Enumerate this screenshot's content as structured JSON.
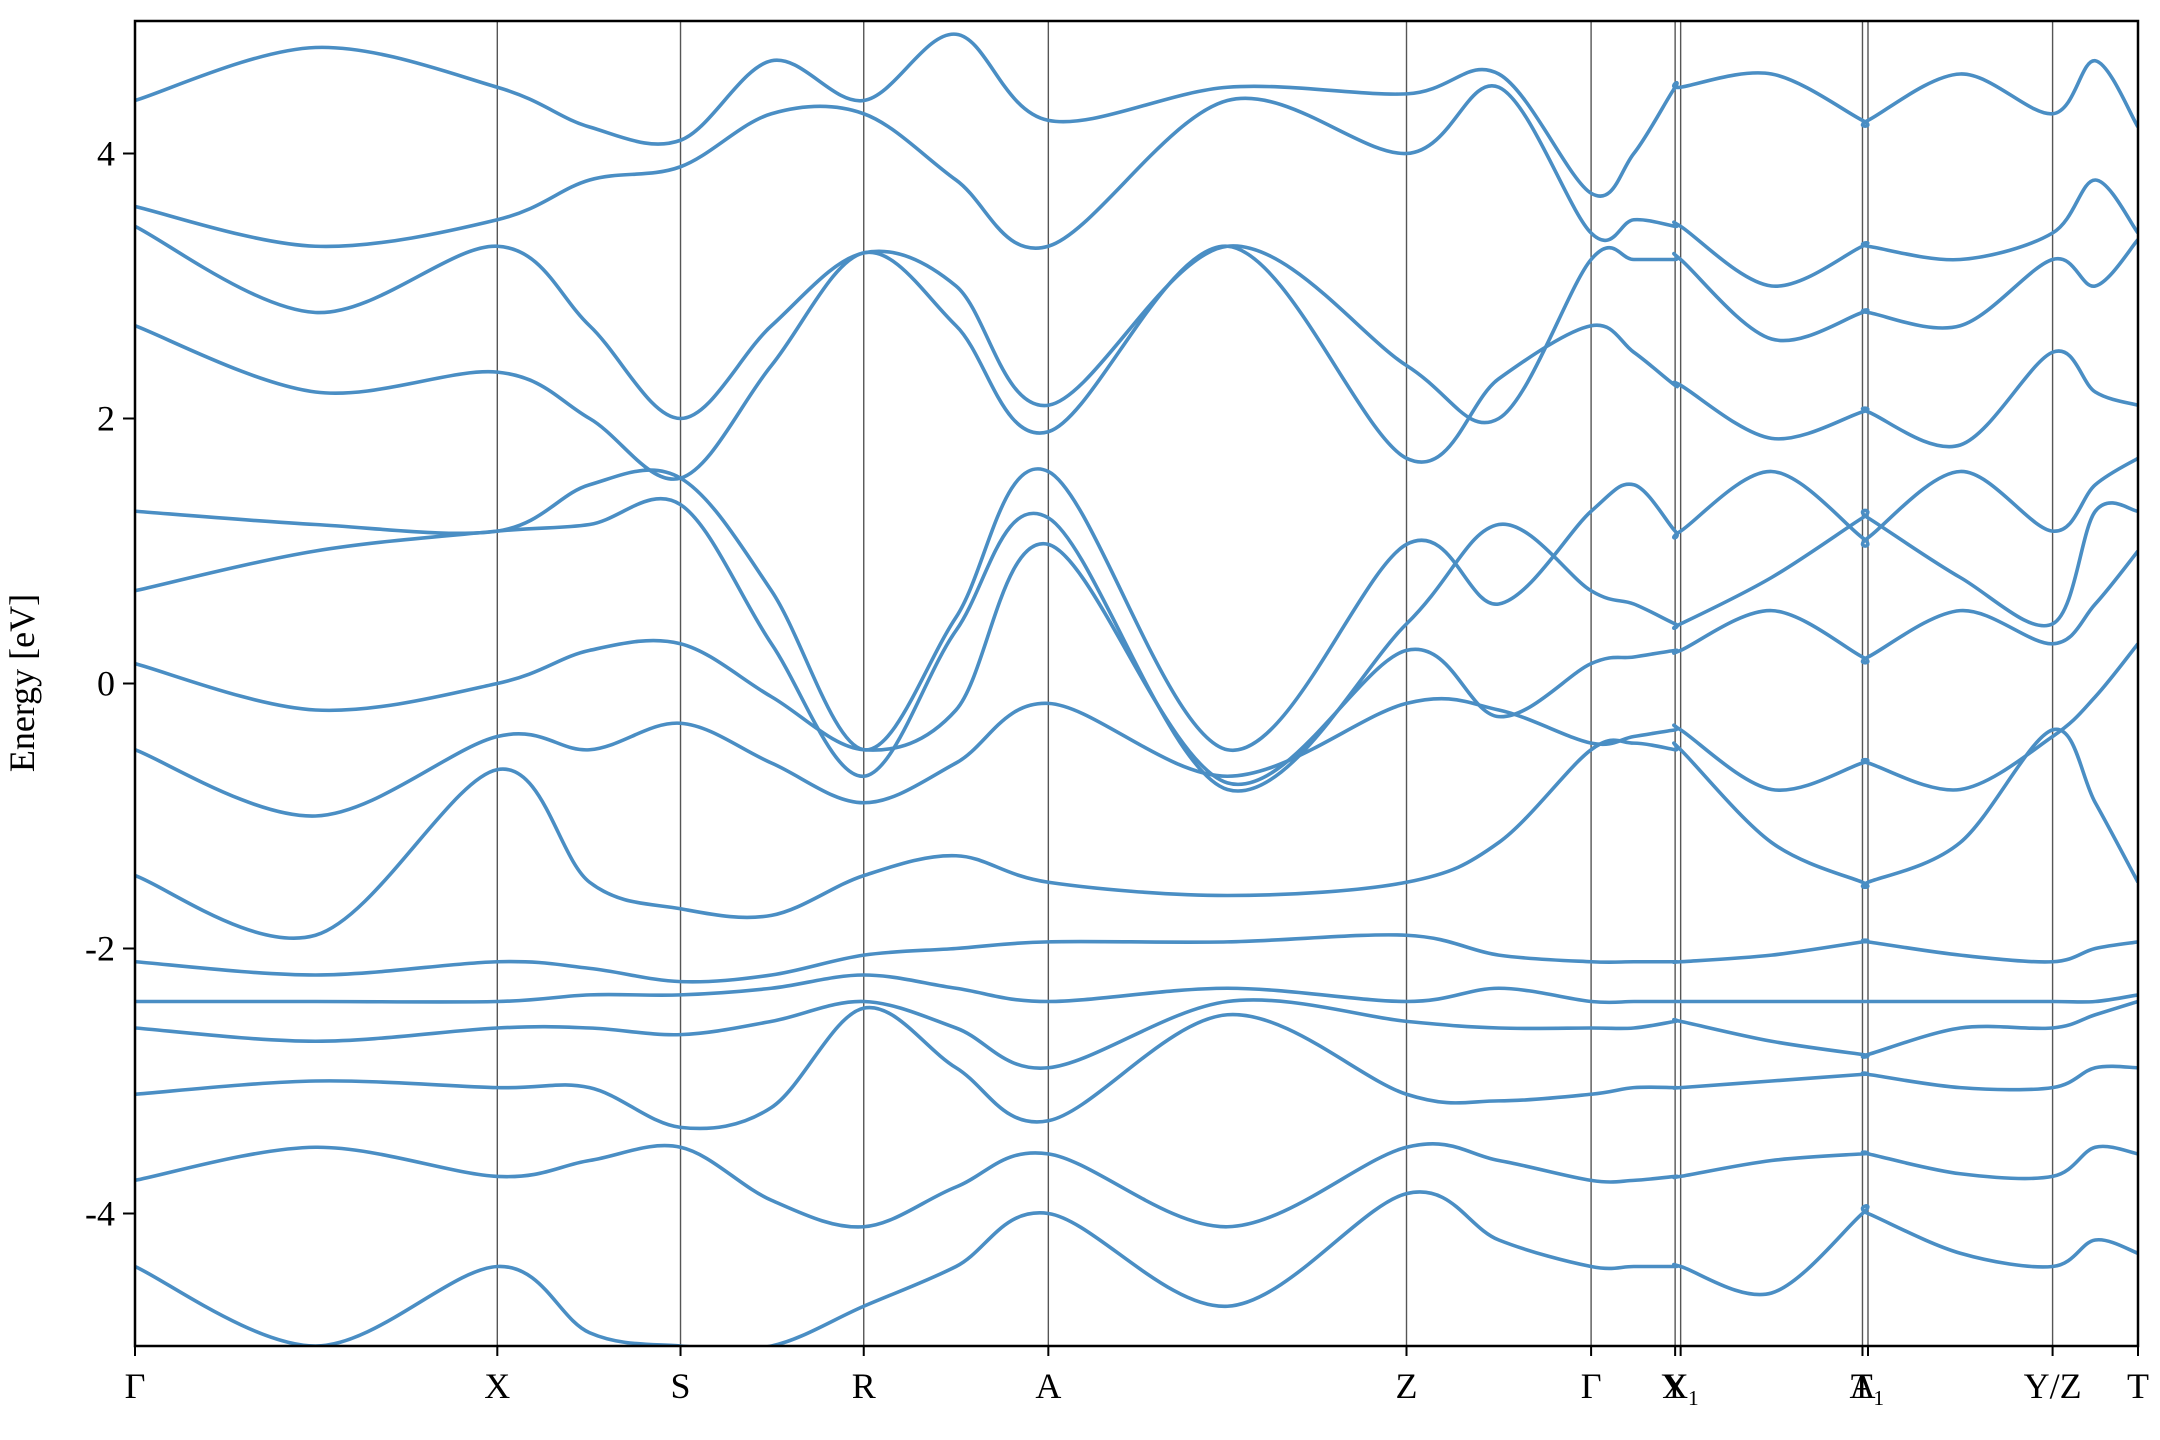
{
  "chart_data": {
    "type": "line",
    "ylabel": "Energy [eV]",
    "ylim": [
      -5,
      5
    ],
    "yticks": [
      -4,
      -2,
      0,
      2,
      4
    ],
    "xlim": [
      0,
      1454
    ],
    "xticks": [
      {
        "value": 0,
        "label": "Γ"
      },
      {
        "value": 263,
        "label": "X"
      },
      {
        "value": 396,
        "label": "S"
      },
      {
        "value": 529,
        "label": "R"
      },
      {
        "value": 663,
        "label": "A"
      },
      {
        "value": 923,
        "label": "Z"
      },
      {
        "value": 1057,
        "label": "Γ"
      },
      {
        "value": 1118,
        "label": "X"
      },
      {
        "value": 1122,
        "label": "Y₁"
      },
      {
        "value": 1254,
        "label": "A"
      },
      {
        "value": 1258,
        "label": "T₁"
      },
      {
        "value": 1392,
        "label": "Y/Z"
      },
      {
        "value": 1454,
        "label": "T"
      }
    ],
    "color": "#4a8ec4",
    "x": [
      0,
      131,
      263,
      330,
      396,
      462,
      529,
      596,
      663,
      793,
      923,
      990,
      1057,
      1088,
      1118,
      1122,
      1188,
      1254,
      1258,
      1325,
      1392,
      1423,
      1454
    ],
    "series": [
      {
        "values": [
          -4.4,
          -5,
          -4.4,
          -4.9,
          -5,
          -5,
          -4.7,
          -4.4,
          -4.0,
          -4.7,
          -3.85,
          -4.2,
          -4.4,
          -4.4,
          -4.4,
          -4.4,
          -4.6,
          -4.0,
          -4.0,
          -4.3,
          -4.4,
          -4.2,
          -4.3
        ]
      },
      {
        "values": [
          -3.75,
          -3.5,
          -3.72,
          -3.6,
          -3.5,
          -3.9,
          -4.1,
          -3.8,
          -3.55,
          -4.1,
          -3.5,
          -3.6,
          -3.75,
          -3.75,
          -3.72,
          -3.72,
          -3.6,
          -3.55,
          -3.55,
          -3.7,
          -3.72,
          -3.5,
          -3.55
        ]
      },
      {
        "values": [
          -3.1,
          -3.0,
          -3.05,
          -3.05,
          -3.35,
          -3.2,
          -2.45,
          -2.9,
          -3.3,
          -2.5,
          -3.1,
          -3.15,
          -3.1,
          -3.05,
          -3.05,
          -3.05,
          -3.0,
          -2.95,
          -2.95,
          -3.05,
          -3.05,
          -2.9,
          -2.9
        ]
      },
      {
        "values": [
          -2.6,
          -2.7,
          -2.6,
          -2.6,
          -2.65,
          -2.55,
          -2.4,
          -2.6,
          -2.9,
          -2.4,
          -2.55,
          -2.6,
          -2.6,
          -2.6,
          -2.55,
          -2.55,
          -2.7,
          -2.8,
          -2.8,
          -2.6,
          -2.6,
          -2.5,
          -2.4
        ]
      },
      {
        "values": [
          -2.4,
          -2.4,
          -2.4,
          -2.35,
          -2.35,
          -2.3,
          -2.2,
          -2.3,
          -2.4,
          -2.3,
          -2.4,
          -2.3,
          -2.4,
          -2.4,
          -2.4,
          -2.4,
          -2.4,
          -2.4,
          -2.4,
          -2.4,
          -2.4,
          -2.4,
          -2.35
        ]
      },
      {
        "values": [
          -2.1,
          -2.2,
          -2.1,
          -2.15,
          -2.25,
          -2.2,
          -2.05,
          -2.0,
          -1.95,
          -1.95,
          -1.9,
          -2.05,
          -2.1,
          -2.1,
          -2.1,
          -2.1,
          -2.05,
          -1.95,
          -1.95,
          -2.05,
          -2.1,
          -2.0,
          -1.95
        ]
      },
      {
        "values": [
          -1.45,
          -1.9,
          -0.65,
          -1.5,
          -1.7,
          -1.75,
          -1.45,
          -1.3,
          -1.5,
          -1.6,
          -1.5,
          -1.2,
          -0.5,
          -0.45,
          -0.5,
          -0.5,
          -1.2,
          -1.5,
          -1.5,
          -1.2,
          -0.35,
          -0.9,
          -1.5
        ]
      },
      {
        "values": [
          -0.5,
          -1.0,
          -0.4,
          -0.5,
          -0.3,
          -0.6,
          -0.9,
          -0.6,
          -0.15,
          -0.7,
          -0.15,
          -0.2,
          -0.45,
          -0.4,
          -0.35,
          -0.35,
          -0.8,
          -0.6,
          -0.6,
          -0.8,
          -0.4,
          -0.1,
          0.3
        ]
      },
      {
        "values": [
          0.15,
          -0.2,
          0.0,
          0.25,
          0.3,
          -0.1,
          -0.5,
          -0.2,
          1.05,
          -0.75,
          0.25,
          -0.25,
          0.15,
          0.2,
          0.25,
          0.25,
          0.55,
          0.2,
          0.2,
          0.55,
          0.3,
          0.6,
          1.0
        ]
      },
      {
        "values": [
          0.7,
          1.0,
          1.15,
          1.2,
          1.35,
          0.3,
          -0.7,
          0.4,
          1.25,
          -0.8,
          0.45,
          1.2,
          0.7,
          0.6,
          0.45,
          0.45,
          0.8,
          1.25,
          1.25,
          0.8,
          0.45,
          1.3,
          1.3
        ]
      },
      {
        "values": [
          1.3,
          1.2,
          1.15,
          1.5,
          1.55,
          0.7,
          -0.5,
          0.5,
          1.6,
          -0.5,
          1.05,
          0.6,
          1.3,
          1.5,
          1.15,
          1.15,
          1.6,
          1.1,
          1.1,
          1.6,
          1.15,
          1.5,
          1.7
        ]
      },
      {
        "values": [
          2.7,
          2.2,
          2.35,
          2.0,
          1.55,
          2.4,
          3.25,
          2.7,
          1.9,
          3.3,
          1.7,
          2.3,
          2.7,
          2.5,
          2.25,
          2.25,
          1.85,
          2.05,
          2.05,
          1.8,
          2.5,
          2.2,
          2.1
        ]
      },
      {
        "values": [
          3.45,
          2.8,
          3.3,
          2.7,
          2.0,
          2.7,
          3.25,
          3.0,
          2.1,
          3.3,
          2.4,
          2.0,
          3.2,
          3.2,
          3.2,
          3.2,
          2.6,
          2.8,
          2.8,
          2.7,
          3.2,
          3.0,
          3.35
        ]
      },
      {
        "values": [
          3.6,
          3.3,
          3.5,
          3.8,
          3.9,
          4.3,
          4.3,
          3.8,
          3.3,
          4.4,
          4.0,
          4.5,
          3.4,
          3.5,
          3.45,
          3.45,
          3.0,
          3.3,
          3.3,
          3.2,
          3.4,
          3.8,
          3.4
        ]
      },
      {
        "values": [
          4.4,
          4.8,
          4.5,
          4.2,
          4.1,
          4.7,
          4.4,
          4.9,
          4.25,
          4.5,
          4.45,
          4.6,
          3.7,
          4.0,
          4.5,
          4.5,
          4.6,
          4.25,
          4.25,
          4.6,
          4.3,
          4.7,
          4.2
        ]
      }
    ]
  }
}
